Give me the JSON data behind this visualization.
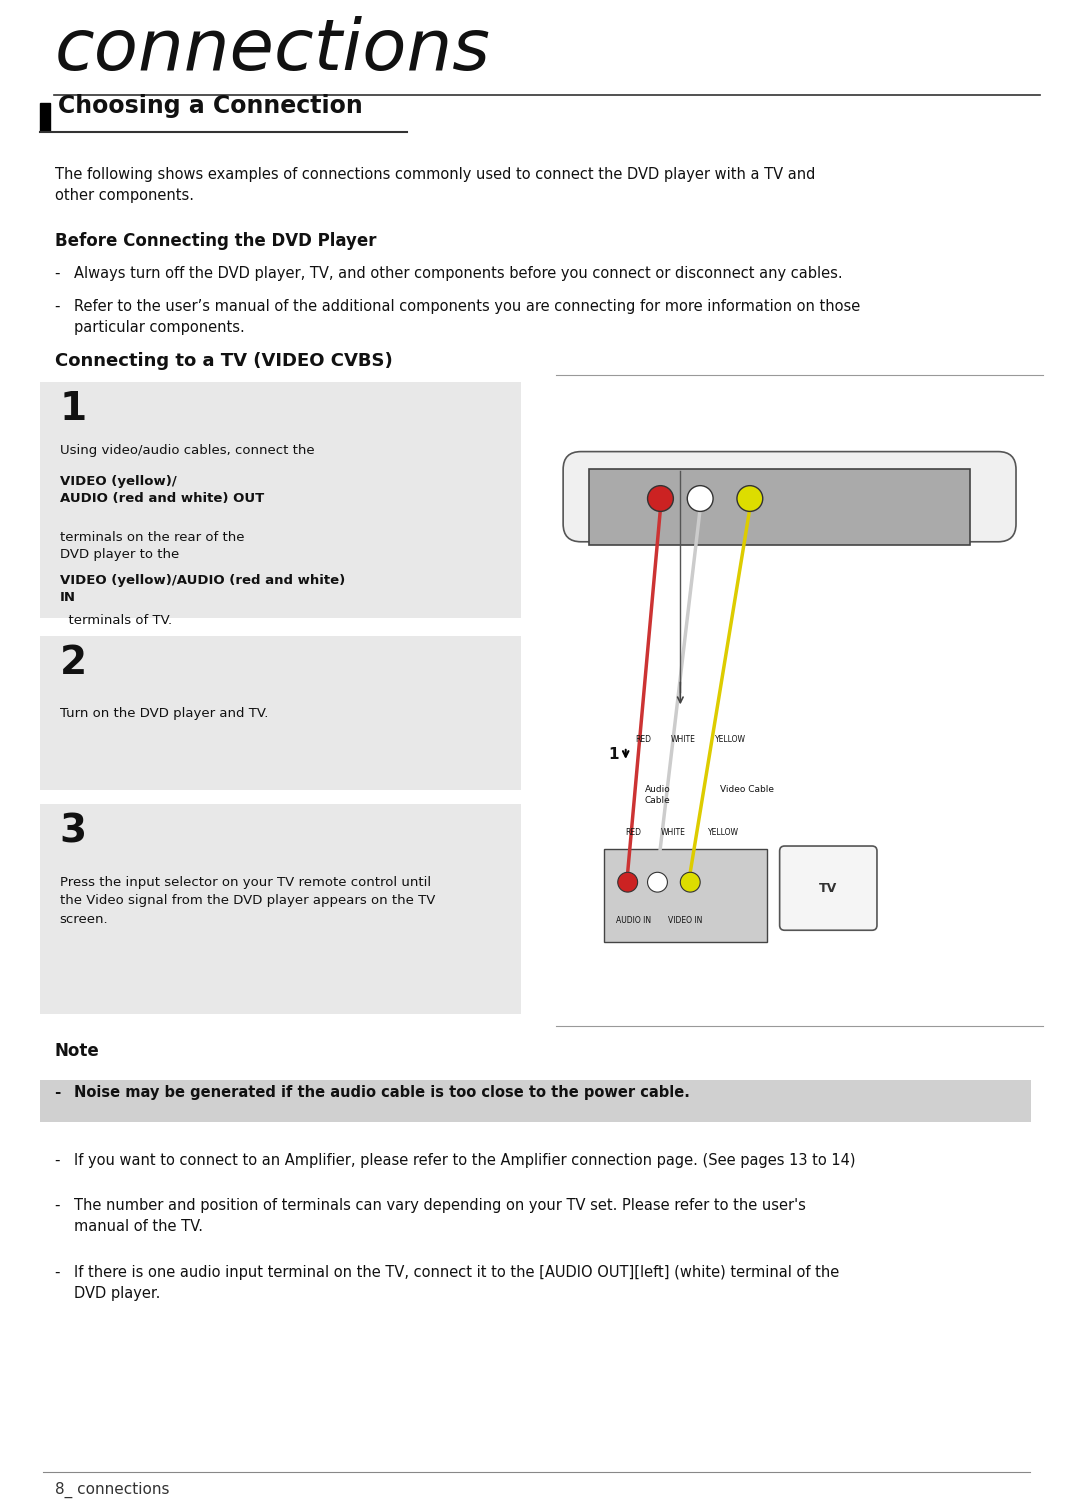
{
  "page_bg": "#ffffff",
  "title_text": "connections",
  "section_title": "Choosing a Connection",
  "intro_text": "The following shows examples of connections commonly used to connect the DVD player with a TV and\nother components.",
  "subtitle1": "Before Connecting the DVD Player",
  "bullet1a": "Always turn off the DVD player, TV, and other components before you connect or disconnect any cables.",
  "bullet1b": "Refer to the user’s manual of the additional components you are connecting for more information on those\nparticular components.",
  "subtitle2": "Connecting to a TV (VIDEO CVBS)",
  "step1_num": "1",
  "step1_text_plain": "Using video/audio cables, connect the ",
  "step1_text_bold1": "VIDEO (yellow)/\nAUDIO (red and white) OUT",
  "step1_text_plain2": " terminals on the rear of the\nDVD player to the ",
  "step1_text_bold2": "VIDEO (yellow)/AUDIO (red and white)\nIN",
  "step1_text_plain3": "  terminals of TV.",
  "step2_num": "2",
  "step2_text": "Turn on the DVD player and TV.",
  "step3_num": "3",
  "step3_text": "Press the input selector on your TV remote control until\nthe Video signal from the DVD player appears on the TV\nscreen.",
  "note_title": "Note",
  "note_bold": "Noise may be generated if the audio cable is too close to the power cable.",
  "note2": "If you want to connect to an Amplifier, please refer to the Amplifier connection page. (See pages 13 to 14)",
  "note3": "The number and position of terminals can vary depending on your TV set. Please refer to the user's\nmanual of the TV.",
  "note4": "If there is one audio input terminal on the TV, connect it to the [AUDIO OUT][left] (white) terminal of the\nDVD player.",
  "footer_text": "8_ connections",
  "step_bg": "#e8e8e8",
  "note_bg": "#e8e8e8",
  "note_bold_bg": "#d0d0d0"
}
